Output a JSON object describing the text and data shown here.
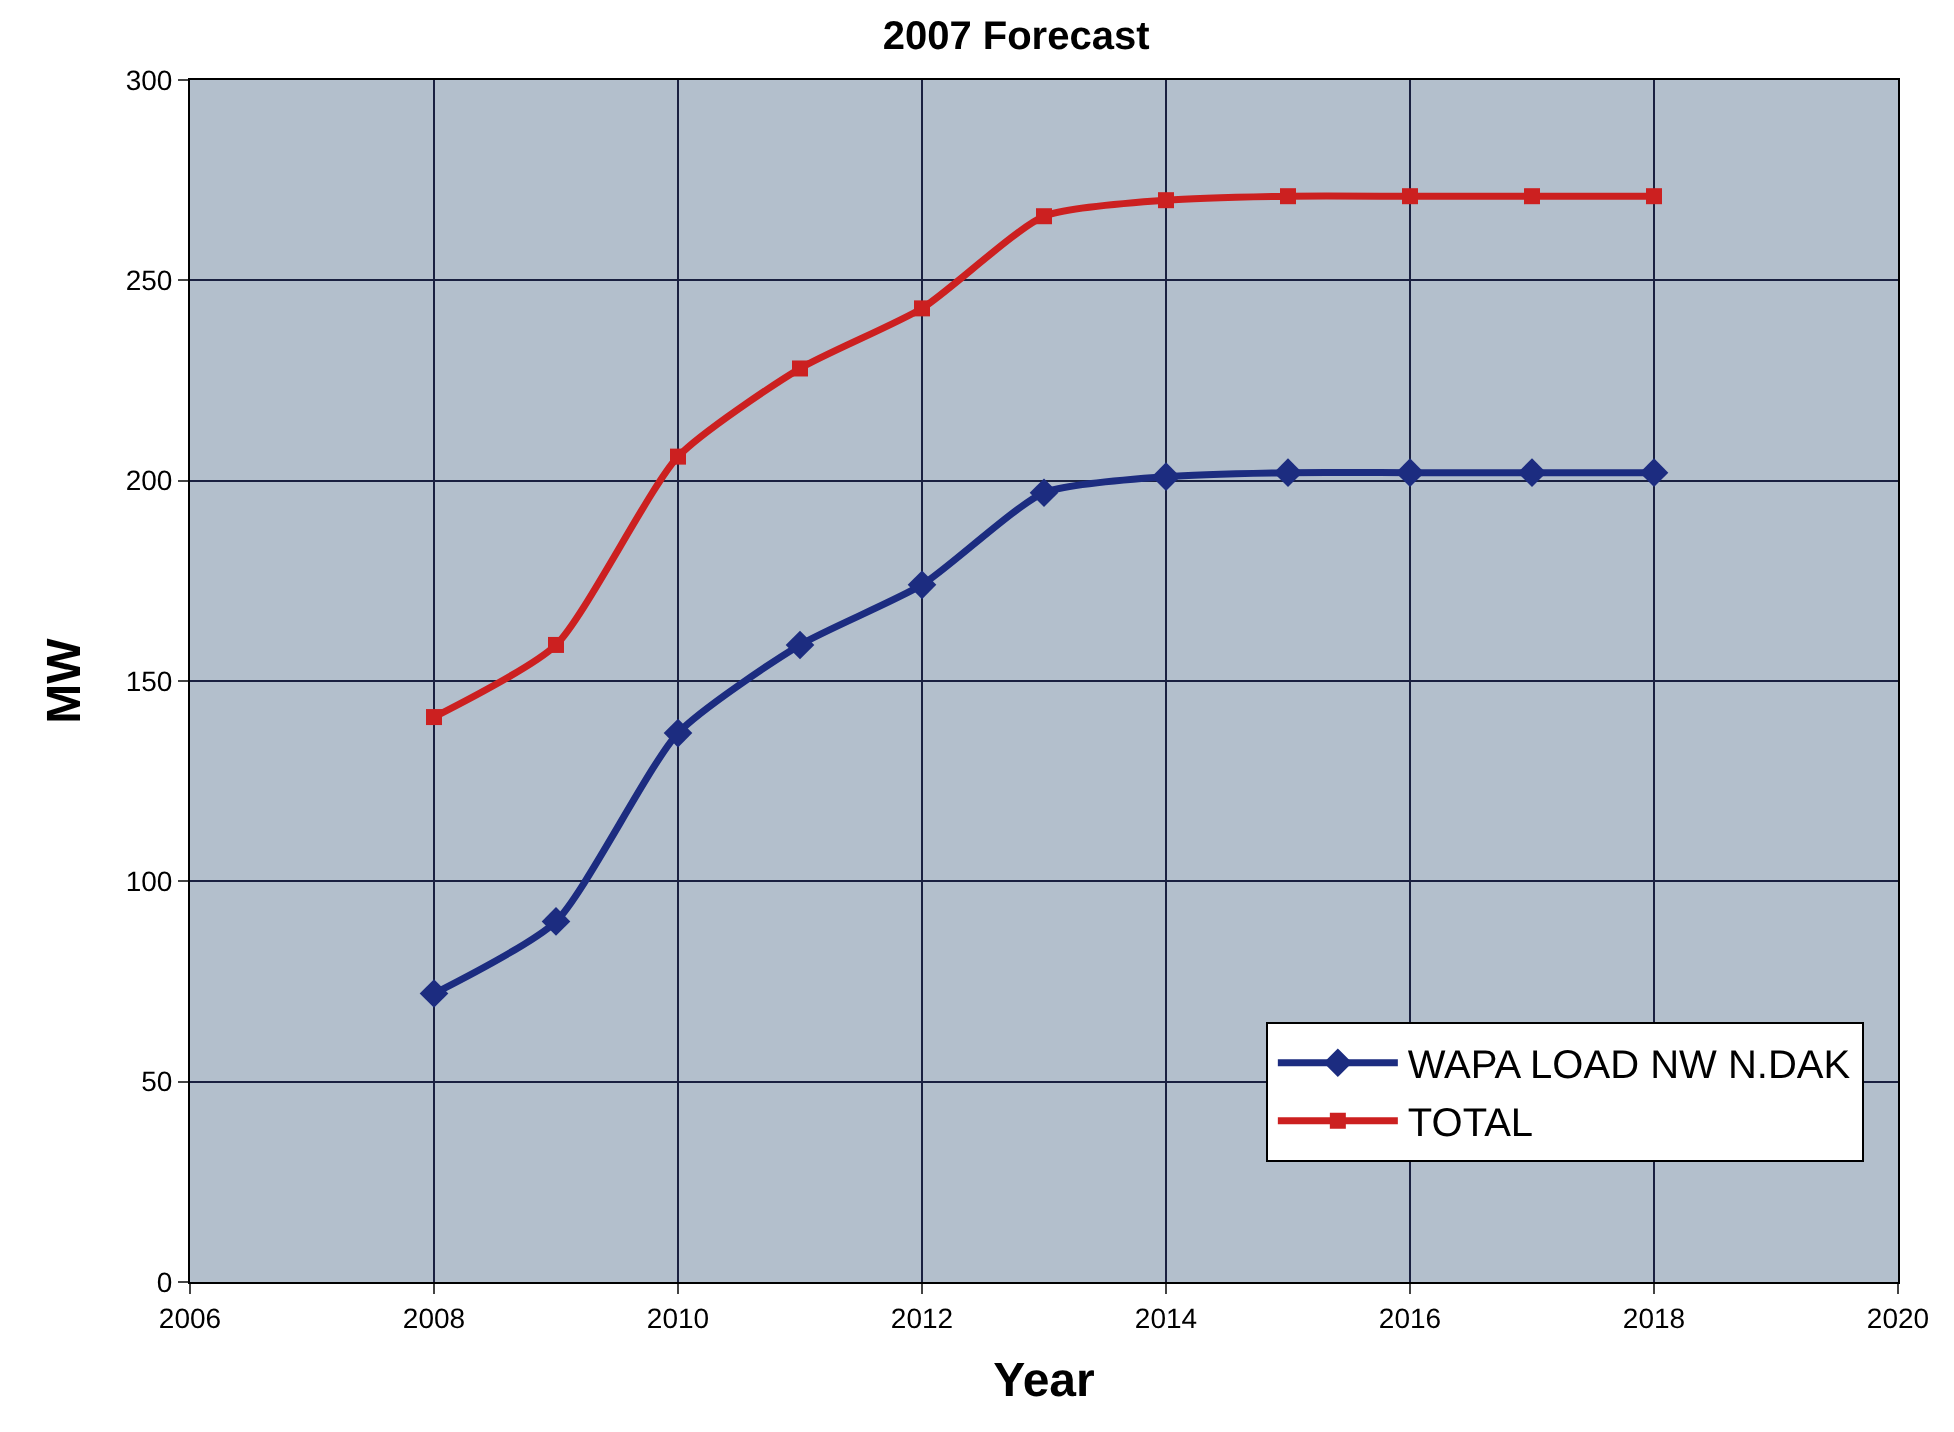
{
  "chart_data": {
    "type": "line",
    "title": "2007 Forecast",
    "xlabel": "Year",
    "ylabel": "MW",
    "x": [
      2008,
      2009,
      2010,
      2011,
      2012,
      2013,
      2014,
      2015,
      2016,
      2017,
      2018
    ],
    "series": [
      {
        "name": "WAPA LOAD NW N.DAK",
        "color": "#1c2c80",
        "marker": "diamond",
        "values": [
          72,
          90,
          137,
          159,
          174,
          197,
          201,
          202,
          202,
          202,
          202
        ]
      },
      {
        "name": "TOTAL",
        "color": "#cc2020",
        "marker": "square",
        "values": [
          141,
          159,
          206,
          228,
          243,
          266,
          270,
          271,
          271,
          271,
          271
        ]
      }
    ],
    "xlim": [
      2006,
      2020
    ],
    "xticks": [
      2006,
      2008,
      2010,
      2012,
      2014,
      2016,
      2018,
      2020
    ],
    "ylim": [
      0,
      300
    ],
    "yticks": [
      0,
      50,
      100,
      150,
      200,
      250,
      300
    ],
    "grid": true,
    "legend": "bottom right",
    "line_style": "solid"
  }
}
